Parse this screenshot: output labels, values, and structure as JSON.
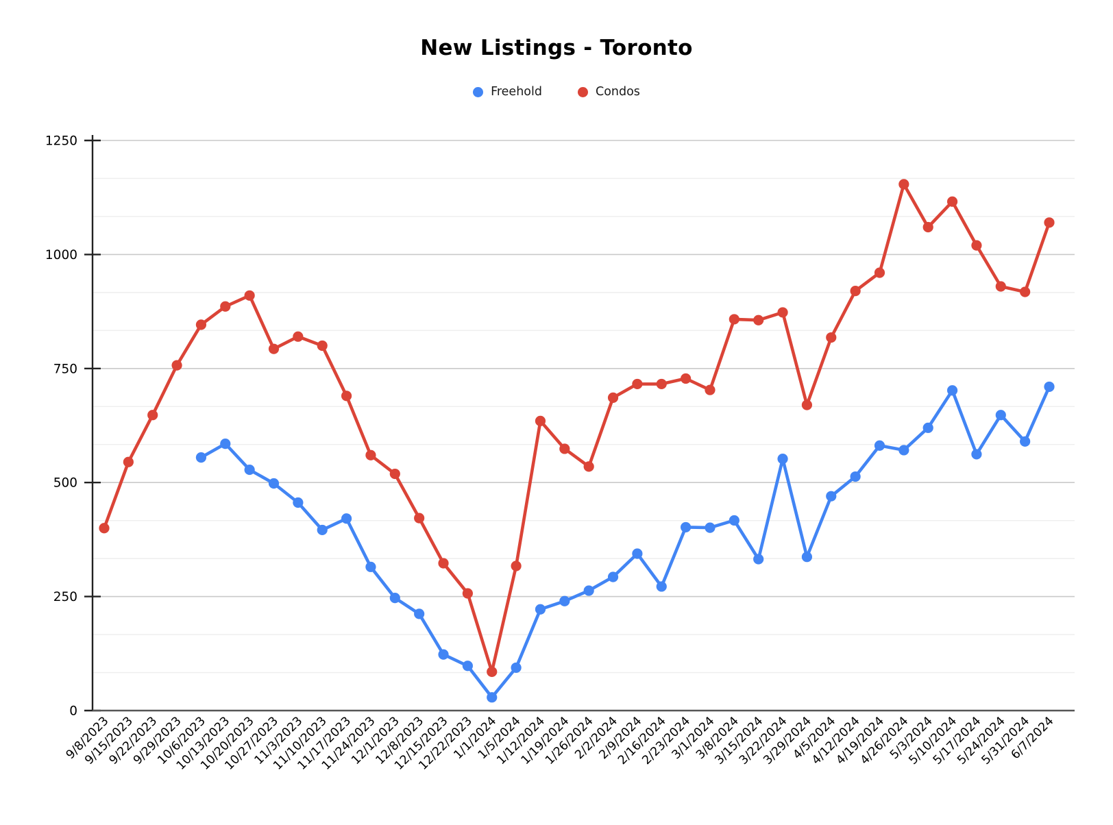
{
  "chart_data": {
    "type": "line",
    "title": "New Listings - Toronto",
    "legend_position": "top",
    "grid": true,
    "xlabel": "",
    "ylabel": "",
    "ylim": [
      0,
      1250
    ],
    "yticks": [
      0,
      250,
      500,
      750,
      1000,
      1250
    ],
    "minor_gridlines_per_major_gap": 2,
    "x_tick_rotation_deg": -45,
    "categories": [
      "9/8/2023",
      "9/15/2023",
      "9/22/2023",
      "9/29/2023",
      "10/6/2023",
      "10/13/2023",
      "10/20/2023",
      "10/27/2023",
      "11/3/2023",
      "11/10/2023",
      "11/17/2023",
      "11/24/2023",
      "12/1/2023",
      "12/8/2023",
      "12/15/2023",
      "12/22/2023",
      "1/1/2024",
      "1/5/2024",
      "1/12/2024",
      "1/19/2024",
      "1/26/2024",
      "2/2/2024",
      "2/9/2024",
      "2/16/2024",
      "2/23/2024",
      "3/1/2024",
      "3/8/2024",
      "3/15/2024",
      "3/22/2024",
      "3/29/2024",
      "4/5/2024",
      "4/12/2024",
      "4/19/2024",
      "4/26/2024",
      "5/3/2024",
      "5/10/2024",
      "5/17/2024",
      "5/24/2024",
      "5/31/2024",
      "6/7/2024"
    ],
    "series": [
      {
        "name": "Freehold",
        "color": "#4285f4",
        "values": [
          null,
          null,
          null,
          null,
          555,
          585,
          528,
          498,
          456,
          396,
          421,
          315,
          247,
          212,
          123,
          98,
          29,
          94,
          222,
          240,
          263,
          293,
          344,
          272,
          402,
          401,
          417,
          332,
          552,
          337,
          470,
          513,
          581,
          571,
          620,
          702,
          562,
          648,
          590,
          710
        ]
      },
      {
        "name": "Condos",
        "color": "#db4437",
        "values": [
          400,
          545,
          648,
          757,
          846,
          886,
          910,
          793,
          820,
          800,
          690,
          560,
          519,
          422,
          323,
          257,
          85,
          317,
          635,
          574,
          535,
          686,
          716,
          716,
          728,
          703,
          858,
          856,
          873,
          670,
          818,
          920,
          960,
          1154,
          1060,
          1116,
          1020,
          930,
          918,
          1070
        ]
      }
    ],
    "colors": {
      "major_gridline": "#c9c9c9",
      "minor_gridline": "#eeeeee",
      "y_axis": "#222222",
      "x_axis": "#555555",
      "tick_label": "#000000"
    }
  }
}
